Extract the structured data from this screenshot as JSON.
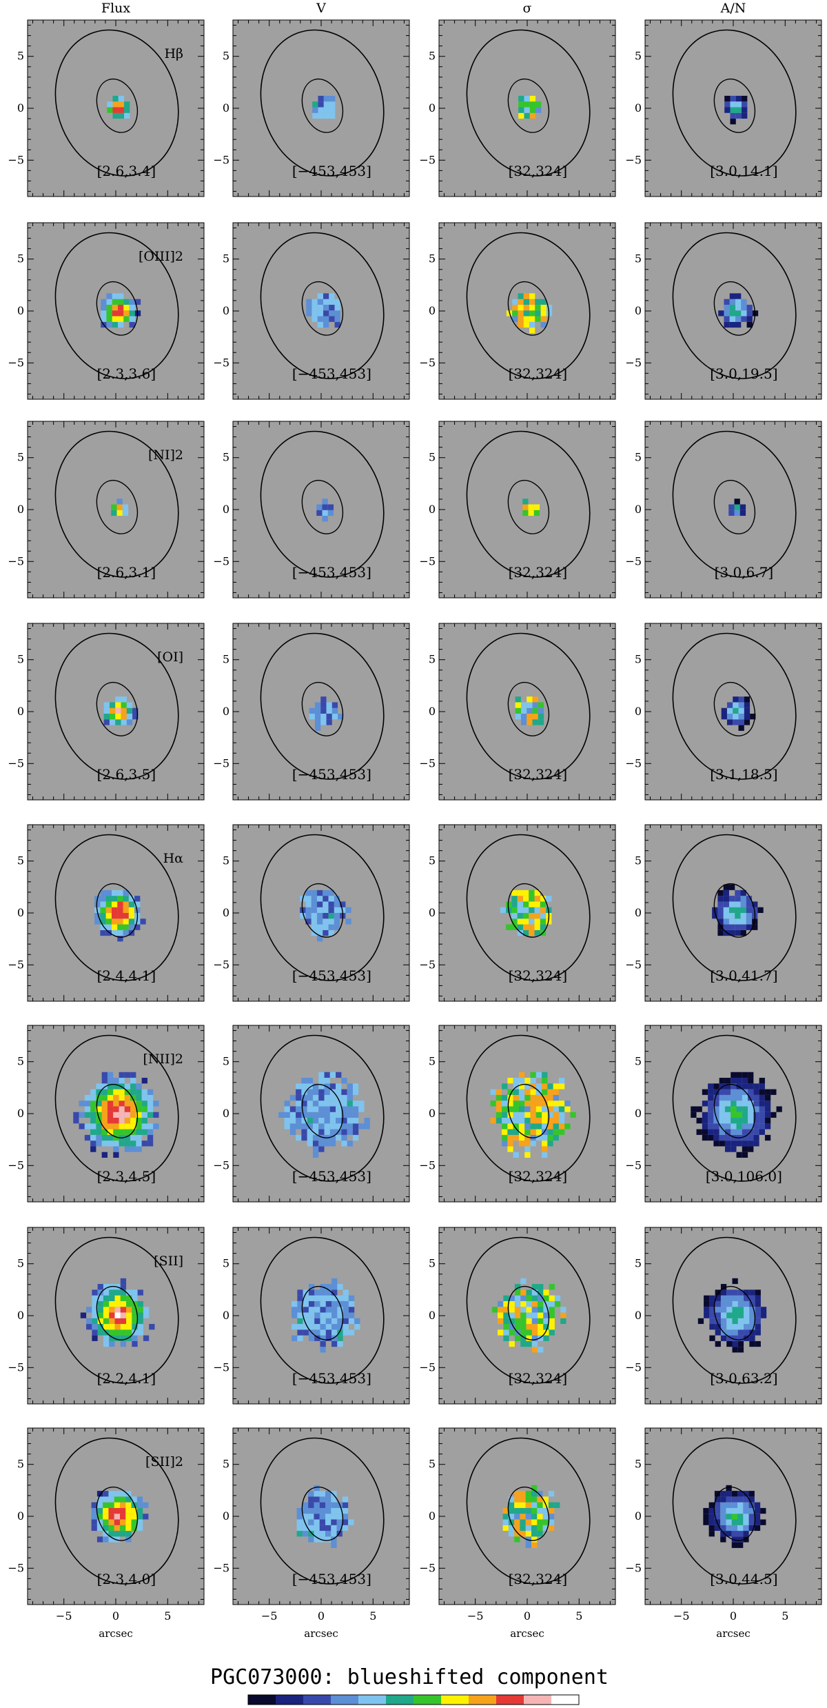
{
  "figure_title": "PGC073000: blueshifted component",
  "chart_data": {
    "type": "heatmap",
    "title": "PGC073000: blueshifted component",
    "columns": [
      "Flux",
      "V",
      "σ",
      "A/N"
    ],
    "xlabel": "arcsec",
    "ylabel": "",
    "xlim": [
      -8.5,
      8.5
    ],
    "ylim": [
      -8.5,
      8.5
    ],
    "xticks": [
      -5,
      0,
      5
    ],
    "yticks": [
      -5,
      0,
      5
    ],
    "colormap": [
      "#0a0a2e",
      "#1a237e",
      "#3949ab",
      "#5c8fd6",
      "#7fc4ef",
      "#1fa88a",
      "#35c52a",
      "#fff200",
      "#f7a21b",
      "#e53935",
      "#f5b5b5",
      "#ffffff"
    ],
    "panel_background": "#a0a0a0",
    "rows": [
      {
        "line": "Hβ",
        "ranges": [
          "[2.6,3.4]",
          "[−453,453]",
          "[32,324]",
          "[3.0,14.1]"
        ],
        "extent": 1.3
      },
      {
        "line": "[OIII]2",
        "ranges": [
          "[2.3,3.6]",
          "[−453,453]",
          "[32,324]",
          "[3.0,19.5]"
        ],
        "extent": 1.9
      },
      {
        "line": "[NI]2",
        "ranges": [
          "[2.6,3.1]",
          "[−453,453]",
          "[32,324]",
          "[3.0,6.7]"
        ],
        "extent": 0.9
      },
      {
        "line": "[OI]",
        "ranges": [
          "[2.6,3.5]",
          "[−453,453]",
          "[32,324]",
          "[3.1,18.5]"
        ],
        "extent": 1.6
      },
      {
        "line": "Hα",
        "ranges": [
          "[2.4,4.1]",
          "[−453,453]",
          "[32,324]",
          "[3.0,41.7]"
        ],
        "extent": 2.5
      },
      {
        "line": "[NII]2",
        "ranges": [
          "[2.3,4.5]",
          "[−453,453]",
          "[32,324]",
          "[3.0,106.0]"
        ],
        "extent": 4.0
      },
      {
        "line": "[SII]",
        "ranges": [
          "[2.2,4.1]",
          "[−453,453]",
          "[32,324]",
          "[3.0,63.2]"
        ],
        "extent": 3.3
      },
      {
        "line": "[SII]2",
        "ranges": [
          "[2.3,4.0]",
          "[−453,453]",
          "[32,324]",
          "[3.0,44.5]"
        ],
        "extent": 2.8
      }
    ]
  }
}
